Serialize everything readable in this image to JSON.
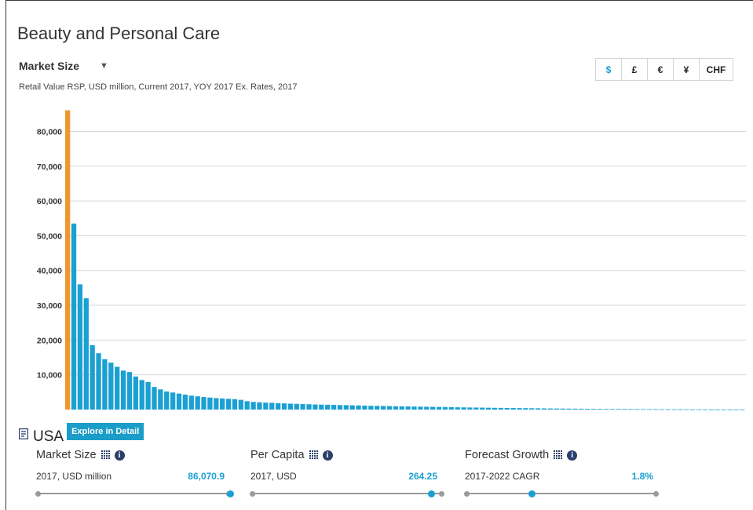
{
  "header": {
    "title": "Beauty and Personal Care",
    "metric_label": "Market Size",
    "caret": "▼",
    "subtitle": "Retail Value RSP, USD million, Current 2017, YOY 2017 Ex. Rates, 2017"
  },
  "currencies": [
    {
      "label": "$",
      "active": true
    },
    {
      "label": "£",
      "active": false
    },
    {
      "label": "€",
      "active": false
    },
    {
      "label": "¥",
      "active": false
    },
    {
      "label": "CHF",
      "active": false
    }
  ],
  "chart_data": {
    "type": "bar",
    "title": "",
    "xlabel": "",
    "ylabel": "",
    "ylim": [
      0,
      88000
    ],
    "yticks": [
      10000,
      20000,
      30000,
      40000,
      50000,
      60000,
      70000,
      80000
    ],
    "ytick_labels": [
      "10,000",
      "20,000",
      "30,000",
      "40,000",
      "50,000",
      "60,000",
      "70,000",
      "80,000"
    ],
    "grid": true,
    "legend": "none",
    "highlight_color": "#f0962f",
    "bar_color": "#1aa0d2",
    "highlight_index": 0,
    "values": [
      86070.9,
      53500,
      36000,
      32000,
      18500,
      16200,
      14500,
      13500,
      12300,
      11200,
      10800,
      9500,
      8500,
      7900,
      6500,
      5800,
      5200,
      4900,
      4600,
      4300,
      4000,
      3800,
      3600,
      3450,
      3300,
      3200,
      3100,
      3000,
      2800,
      2400,
      2200,
      2100,
      2000,
      1950,
      1850,
      1780,
      1700,
      1640,
      1580,
      1520,
      1470,
      1420,
      1380,
      1340,
      1300,
      1260,
      1220,
      1180,
      1140,
      1100,
      1060,
      1020,
      990,
      960,
      930,
      900,
      870,
      840,
      810,
      780,
      750,
      720,
      690,
      660,
      630,
      600,
      575,
      550,
      525,
      500,
      480,
      460,
      440,
      420,
      400,
      380,
      360,
      340,
      320,
      300,
      285,
      270,
      255,
      240,
      225,
      210,
      195,
      180,
      170,
      160,
      150,
      140,
      130,
      120,
      110,
      100,
      92,
      84,
      76,
      68,
      60,
      54,
      48,
      42,
      36,
      30,
      25,
      20,
      15,
      10
    ]
  },
  "country": {
    "name": "USA",
    "explore_label": "Explore in Detail"
  },
  "metrics": [
    {
      "name": "Market Size",
      "meta": "2017, USD million",
      "value": "86,070.9",
      "position": 1.0
    },
    {
      "name": "Per Capita",
      "meta": "2017, USD",
      "value": "264.25",
      "position": 0.94
    },
    {
      "name": "Forecast Growth",
      "meta": "2017-2022 CAGR",
      "value": "1.8%",
      "position": 0.35
    }
  ]
}
